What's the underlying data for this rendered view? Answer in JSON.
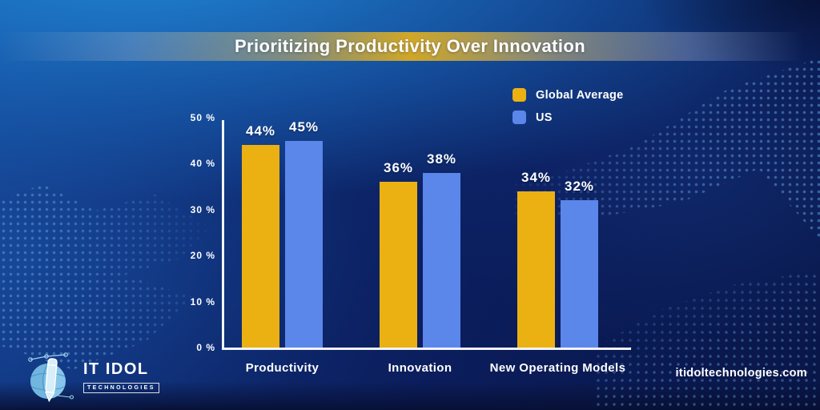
{
  "title": "Prioritizing Productivity Over Innovation",
  "chart_data": {
    "type": "bar",
    "categories": [
      "Productivity",
      "Innovation",
      "New Operating Models"
    ],
    "series": [
      {
        "name": "Global Average",
        "color": "#EBB112",
        "values": [
          44,
          36,
          34
        ]
      },
      {
        "name": "US",
        "color": "#5B86EA",
        "values": [
          45,
          38,
          32
        ]
      }
    ],
    "title": "Prioritizing Productivity Over Innovation",
    "xlabel": "",
    "ylabel": "",
    "ylim": [
      0,
      50
    ],
    "ytick_labels": [
      "0 %",
      "10 %",
      "20 %",
      "30 %",
      "40 %",
      "50 %"
    ],
    "value_suffix": "%",
    "grid": false,
    "legend_position": "top-right",
    "axis_color": "#FFFFFF",
    "label_color": "#FFFFFF"
  },
  "legend": {
    "items": [
      {
        "label": "Global Average",
        "color": "#EBB112"
      },
      {
        "label": "US",
        "color": "#5B86EA"
      }
    ]
  },
  "branding": {
    "logo_title": "IT IDOL",
    "logo_subtitle": "TECHNOLOGIES",
    "website": "itidoltechnologies.com"
  },
  "colors": {
    "background_navy": "#0A1748",
    "background_bright_blue": "#1E86D6",
    "band_gold": "#E9B41E",
    "dot_blue": "#5C98D8",
    "bar_yellow": "#EBB112",
    "bar_blue": "#5B86EA",
    "axis_white": "#F2F4F8",
    "text_white": "#FFFFFF"
  }
}
